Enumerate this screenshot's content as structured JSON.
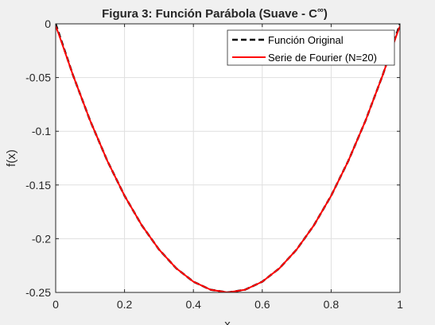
{
  "figure_bg": "#f0f0f0",
  "chart_data": {
    "type": "line",
    "title": "Figura 3: Función Parábola (Suave - C",
    "title_superscript": "∞",
    "title_suffix": ")",
    "xlabel": "x",
    "ylabel": "f(x)",
    "xlim": [
      0,
      1
    ],
    "ylim": [
      -0.25,
      0
    ],
    "xticks": [
      0,
      0.2,
      0.4,
      0.6,
      0.8,
      1
    ],
    "xtick_labels": [
      "0",
      "0.2",
      "0.4",
      "0.6",
      "0.8",
      "1"
    ],
    "yticks": [
      0,
      -0.05,
      -0.1,
      -0.15,
      -0.2,
      -0.25
    ],
    "ytick_labels": [
      "0",
      "-0.05",
      "-0.1",
      "-0.15",
      "-0.2",
      "-0.25"
    ],
    "grid": true,
    "legend_position": "top-right",
    "series": [
      {
        "name": "Función Original",
        "color": "#000000",
        "style": "dashed",
        "x": [
          0,
          0.05,
          0.1,
          0.15,
          0.2,
          0.25,
          0.3,
          0.35,
          0.4,
          0.45,
          0.5,
          0.55,
          0.6,
          0.65,
          0.7,
          0.75,
          0.8,
          0.85,
          0.9,
          0.95,
          1
        ],
        "y": [
          0,
          -0.0475,
          -0.09,
          -0.1275,
          -0.16,
          -0.1875,
          -0.21,
          -0.2275,
          -0.24,
          -0.2475,
          -0.25,
          -0.2475,
          -0.24,
          -0.2275,
          -0.21,
          -0.1875,
          -0.16,
          -0.1275,
          -0.09,
          -0.0475,
          0
        ]
      },
      {
        "name": "Serie de Fourier (N=20)",
        "color": "#ff0000",
        "style": "solid",
        "x": [
          0,
          0.01,
          0.05,
          0.1,
          0.15,
          0.2,
          0.25,
          0.3,
          0.35,
          0.4,
          0.45,
          0.5,
          0.55,
          0.6,
          0.65,
          0.7,
          0.75,
          0.8,
          0.85,
          0.9,
          0.95,
          0.99,
          1
        ],
        "y": [
          -0.002,
          -0.0105,
          -0.0475,
          -0.09,
          -0.1275,
          -0.16,
          -0.1875,
          -0.21,
          -0.2275,
          -0.24,
          -0.2475,
          -0.25,
          -0.2475,
          -0.24,
          -0.2275,
          -0.21,
          -0.1875,
          -0.16,
          -0.1275,
          -0.09,
          -0.0475,
          -0.0105,
          -0.002
        ]
      }
    ]
  }
}
